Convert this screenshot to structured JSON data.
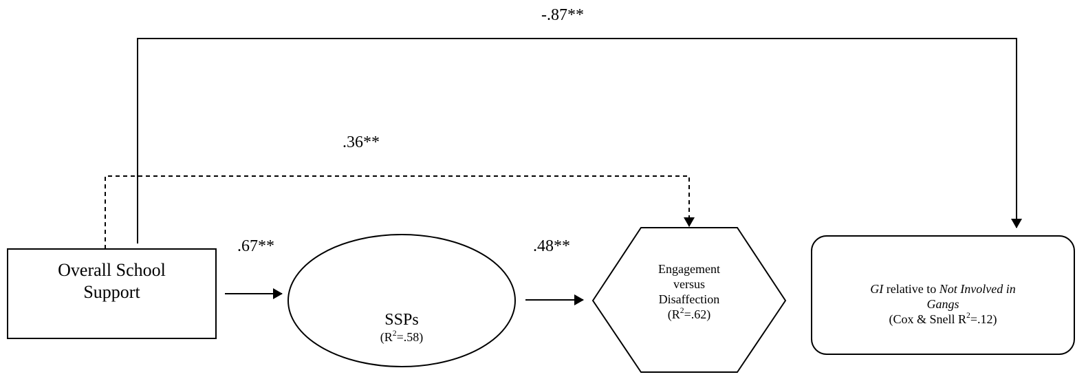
{
  "nodes": {
    "school_support": {
      "line1": "Overall School",
      "line2": "Support"
    },
    "ssps": {
      "title": "SSPs",
      "r2_prefix": "(R",
      "r2_sup": "2",
      "r2_suffix": "=.58)"
    },
    "engagement": {
      "line1": "Engagement",
      "line2": "versus",
      "line3": "Disaffection",
      "r2_prefix": "(R",
      "r2_sup": "2",
      "r2_suffix": "=.62)"
    },
    "gi": {
      "line1_italic": "GI",
      "line1_rest": " relative to ",
      "line1_italic2": "Not Involved in",
      "line2_italic": "Gangs",
      "r2_prefix": "(Cox & Snell R",
      "r2_sup": "2",
      "r2_suffix": "=.12)"
    }
  },
  "paths": {
    "school_to_gi": "-.87**",
    "school_to_engagement": ".36**",
    "school_to_ssps": ".67**",
    "ssps_to_engagement": ".48**"
  }
}
